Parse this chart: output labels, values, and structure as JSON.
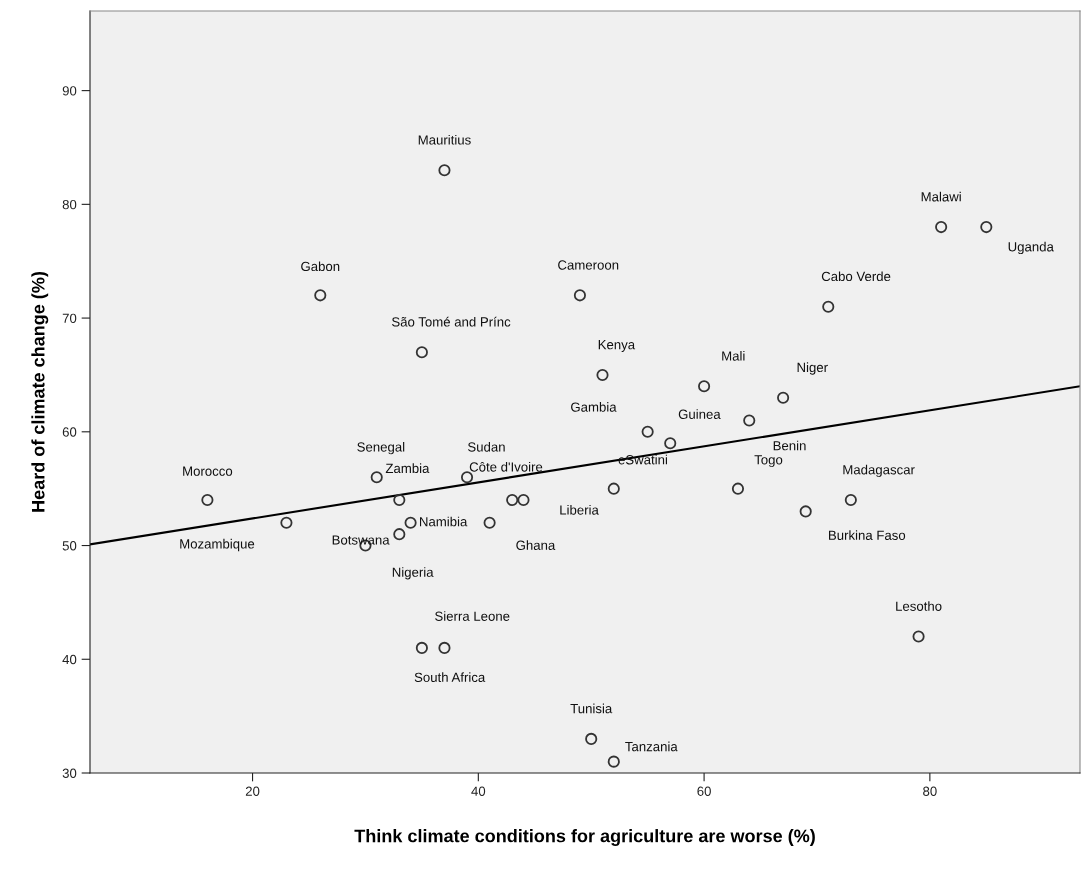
{
  "chart_data": {
    "type": "scatter",
    "xlabel": "Think climate conditions for agriculture are worse (%)",
    "ylabel": "Heard of climate change (%)",
    "xlim": [
      5.6,
      93.3
    ],
    "ylim": [
      30,
      97
    ],
    "xticks": [
      20,
      40,
      60,
      80
    ],
    "yticks": [
      30,
      40,
      50,
      60,
      70,
      80,
      90
    ],
    "grid": false,
    "series": [
      {
        "marker": "circle",
        "color": "#333333",
        "x": [
          16,
          23,
          26,
          31,
          30,
          33,
          33,
          34,
          35,
          37,
          35,
          37,
          39,
          43,
          44,
          41,
          49,
          50,
          52,
          52,
          51,
          55,
          57,
          60,
          63,
          64,
          67,
          69,
          71,
          73,
          79,
          81,
          85
        ],
        "values": [
          54,
          52,
          72,
          56,
          50,
          51,
          54,
          52,
          67,
          41,
          41,
          83,
          56,
          54,
          54,
          52,
          72,
          33,
          31,
          55,
          65,
          60,
          59,
          64,
          55,
          61,
          63,
          53,
          71,
          54,
          42,
          78,
          78
        ]
      },
      {
        "type": "line",
        "color": "#000000",
        "line_style": "solid",
        "x": [
          5.6,
          93.3
        ],
        "values": [
          50.1,
          64.0
        ]
      }
    ],
    "annotations": [
      {
        "text": "Morocco",
        "x": 16,
        "y": 54
      },
      {
        "text": "Mozambique",
        "x": 23,
        "y": 52
      },
      {
        "text": "Gabon",
        "x": 26,
        "y": 72
      },
      {
        "text": "Senegal",
        "x": 31,
        "y": 56
      },
      {
        "text": "Nigeria",
        "x": 30,
        "y": 50
      },
      {
        "text": "Botswana",
        "x": 33,
        "y": 51
      },
      {
        "text": "Zambia",
        "x": 33,
        "y": 54
      },
      {
        "text": "Namibia",
        "x": 34,
        "y": 52
      },
      {
        "text": "São Tomé and Prínc",
        "x": 35,
        "y": 67
      },
      {
        "text": "Sierra Leone",
        "x": 37,
        "y": 41
      },
      {
        "text": "South Africa",
        "x": 35,
        "y": 41
      },
      {
        "text": "Mauritius",
        "x": 37,
        "y": 83
      },
      {
        "text": "Sudan",
        "x": 39,
        "y": 56
      },
      {
        "text": "Côte d'Ivoire",
        "x": 43,
        "y": 54
      },
      {
        "text": "Liberia",
        "x": 44,
        "y": 54
      },
      {
        "text": "Ghana",
        "x": 41,
        "y": 52
      },
      {
        "text": "Cameroon",
        "x": 49,
        "y": 72
      },
      {
        "text": "Tunisia",
        "x": 50,
        "y": 33
      },
      {
        "text": "Tanzania",
        "x": 52,
        "y": 31
      },
      {
        "text": "eSwatini",
        "x": 52,
        "y": 55
      },
      {
        "text": "Kenya",
        "x": 51,
        "y": 65
      },
      {
        "text": "Gambia",
        "x": 55,
        "y": 60
      },
      {
        "text": "Guinea",
        "x": 57,
        "y": 59
      },
      {
        "text": "Mali",
        "x": 60,
        "y": 64
      },
      {
        "text": "Togo",
        "x": 63,
        "y": 55
      },
      {
        "text": "Benin",
        "x": 64,
        "y": 61
      },
      {
        "text": "Niger",
        "x": 67,
        "y": 63
      },
      {
        "text": "Burkina Faso",
        "x": 69,
        "y": 53
      },
      {
        "text": "Cabo Verde",
        "x": 71,
        "y": 71
      },
      {
        "text": "Madagascar",
        "x": 73,
        "y": 54
      },
      {
        "text": "Lesotho",
        "x": 79,
        "y": 42
      },
      {
        "text": "Malawi",
        "x": 81,
        "y": 78
      },
      {
        "text": "Uganda",
        "x": 85,
        "y": 78
      }
    ]
  }
}
